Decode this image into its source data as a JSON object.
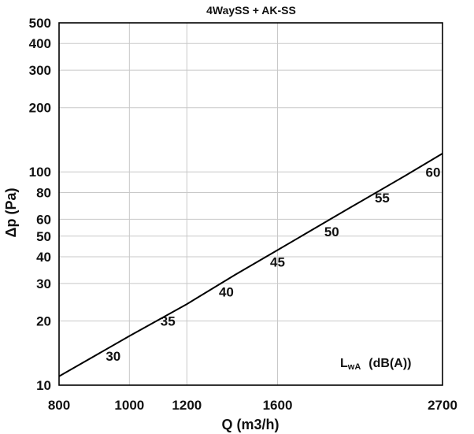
{
  "chart_data": {
    "type": "line",
    "title": "4WaySS + AK-SS",
    "xlabel": "Q  (m3/h)",
    "ylabel": "Δp  (Pa)",
    "x_scale": "log",
    "y_scale": "log",
    "xlim": [
      800,
      2700
    ],
    "ylim": [
      10,
      500
    ],
    "x_ticks": [
      800,
      1000,
      1200,
      1600,
      2700
    ],
    "y_ticks": [
      10,
      20,
      30,
      40,
      50,
      60,
      80,
      100,
      200,
      300,
      400,
      500
    ],
    "grid": true,
    "series": [
      {
        "x": [
          800,
          1000,
          1200,
          1400,
          1600,
          2000,
          2400,
          2700
        ],
        "y": [
          11,
          17,
          24,
          33,
          43,
          67,
          96,
          122
        ]
      }
    ],
    "legend": {
      "main": "L",
      "sub": "wA",
      "unit": "(dB(A))"
    },
    "annotations": [
      {
        "text": "30",
        "x": 950,
        "y": 13
      },
      {
        "text": "35",
        "x": 1130,
        "y": 19
      },
      {
        "text": "40",
        "x": 1360,
        "y": 26
      },
      {
        "text": "45",
        "x": 1600,
        "y": 36
      },
      {
        "text": "50",
        "x": 1900,
        "y": 50
      },
      {
        "text": "55",
        "x": 2230,
        "y": 72
      },
      {
        "text": "60",
        "x": 2620,
        "y": 95
      }
    ]
  }
}
